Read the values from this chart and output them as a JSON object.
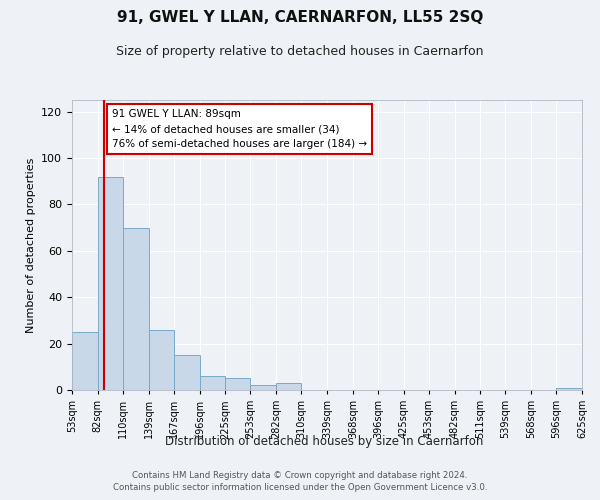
{
  "title": "91, GWEL Y LLAN, CAERNARFON, LL55 2SQ",
  "subtitle": "Size of property relative to detached houses in Caernarfon",
  "xlabel": "Distribution of detached houses by size in Caernarfon",
  "ylabel": "Number of detached properties",
  "bar_heights": [
    25,
    92,
    70,
    26,
    15,
    6,
    5,
    2,
    3,
    0,
    0,
    0,
    0,
    0,
    0,
    0,
    0,
    0,
    0,
    1
  ],
  "bar_color": "#c8d8e8",
  "bar_edge_color": "#7aaac8",
  "bar_bins": [
    53,
    82,
    110,
    139,
    167,
    196,
    225,
    253,
    282,
    310,
    339,
    368,
    396,
    425,
    453,
    482,
    511,
    539,
    568,
    596,
    625
  ],
  "vline_x": 89,
  "vline_color": "#cc0000",
  "ylim": [
    0,
    125
  ],
  "yticks": [
    0,
    20,
    40,
    60,
    80,
    100,
    120
  ],
  "annotation_text": "91 GWEL Y LLAN: 89sqm\n← 14% of detached houses are smaller (34)\n76% of semi-detached houses are larger (184) →",
  "annotation_box_color": "#ffffff",
  "annotation_box_edge": "#cc0000",
  "footer1": "Contains HM Land Registry data © Crown copyright and database right 2024.",
  "footer2": "Contains public sector information licensed under the Open Government Licence v3.0.",
  "background_color": "#eef2f6",
  "grid_color": "#ffffff"
}
